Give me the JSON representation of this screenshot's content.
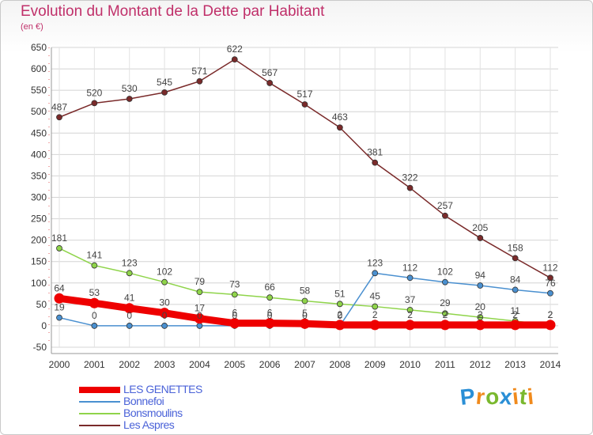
{
  "header": {
    "title": "Evolution du Montant de la Dette par Habitant",
    "subtitle": "(en €)"
  },
  "logo": {
    "letters": [
      "P",
      "r",
      "o",
      "x",
      "i",
      "t",
      "i"
    ],
    "colors": [
      "#2a8fd6",
      "#f08a1c",
      "#7ab82e",
      "#2a8fd6",
      "#f08a1c",
      "#7ab82e",
      "#f08a1c"
    ]
  },
  "chart_data": {
    "type": "line",
    "x": [
      "2000",
      "2001",
      "2002",
      "2003",
      "2004",
      "2005",
      "2006",
      "2007",
      "2008",
      "2009",
      "2010",
      "2011",
      "2012",
      "2013",
      "2014"
    ],
    "ylim": [
      -50,
      650
    ],
    "yticks": [
      "-50",
      "0",
      "50",
      "100",
      "150",
      "200",
      "250",
      "300",
      "350",
      "400",
      "450",
      "500",
      "550",
      "600",
      "650"
    ],
    "grid": true,
    "legend_position": "bottom-left",
    "series": [
      {
        "name": "Les Aspres",
        "color": "#7a2a2a",
        "values": [
          487,
          520,
          530,
          545,
          571,
          622,
          567,
          517,
          463,
          381,
          322,
          257,
          205,
          158,
          112
        ],
        "labels": [
          "487",
          "520",
          "530",
          "545",
          "571",
          "622",
          "567",
          "517",
          "463",
          "381",
          "322",
          "257",
          "205",
          "158",
          "112"
        ]
      },
      {
        "name": "Bonsmoulins",
        "color": "#8fd44a",
        "values": [
          181,
          141,
          123,
          102,
          79,
          73,
          66,
          58,
          51,
          45,
          37,
          29,
          20,
          11,
          2
        ],
        "labels": [
          "181",
          "141",
          "123",
          "102",
          "79",
          "73",
          "66",
          "58",
          "51",
          "45",
          "37",
          "29",
          "20",
          "11",
          "2"
        ]
      },
      {
        "name": "Bonnefoi",
        "color": "#4a90d0",
        "values": [
          19,
          0,
          0,
          0,
          0,
          0,
          0,
          0,
          0,
          123,
          112,
          102,
          94,
          84,
          76
        ],
        "labels": [
          "19",
          "0",
          "0",
          "0",
          "0",
          "0",
          "0",
          "0",
          "0",
          "123",
          "112",
          "102",
          "94",
          "84",
          "76"
        ]
      },
      {
        "name": "LES GENETTES",
        "color": "#ee0000",
        "values": [
          64,
          53,
          41,
          30,
          17,
          6,
          6,
          5,
          2,
          2,
          2,
          2,
          2,
          2,
          2
        ],
        "labels": [
          "64",
          "53",
          "41",
          "30",
          "17",
          "6",
          "6",
          "5",
          "2",
          "2",
          "2",
          "2",
          "2",
          "2",
          "2"
        ]
      }
    ],
    "legend_order": [
      "LES GENETTES",
      "Bonnefoi",
      "Bonsmoulins",
      "Les Aspres"
    ]
  }
}
